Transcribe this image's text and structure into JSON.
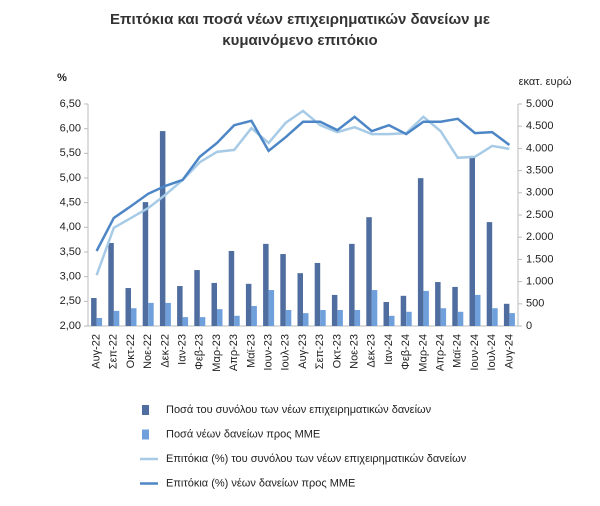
{
  "chart_data": {
    "type": "bar_line",
    "title": [
      "Επιτόκια και ποσά νέων επιχειρηματικών δανείων με",
      "κυμαινόμενο επιτόκιο"
    ],
    "y_label": "%",
    "y2_label": "εκατ. ευρώ",
    "categories": [
      "Αυγ-22",
      "Σεπ-22",
      "Οκτ-22",
      "Νοε-22",
      "Δεκ-22",
      "Ιαν-23",
      "Φεβ-23",
      "Μαρ-23",
      "Απρ-23",
      "Μαϊ-23",
      "Ιουν-23",
      "Ιουλ-23",
      "Αυγ-23",
      "Σεπ-23",
      "Οκτ-23",
      "Νοε-23",
      "Δεκ-23",
      "Ιαν-24",
      "Φεβ-24",
      "Μαρ-24",
      "Απρ-24",
      "Μαϊ-24",
      "Ιουν-24",
      "Ιουλ-24",
      "Αυγ-24"
    ],
    "series": [
      {
        "name": "Ποσά του συνόλου των νέων επιχειρηματικών δανείων",
        "type": "bar",
        "axis": "y2",
        "color": "#4f6d9e",
        "values": [
          630,
          1870,
          855,
          2790,
          4390,
          900,
          1260,
          970,
          1690,
          950,
          1850,
          1620,
          1190,
          1420,
          700,
          1850,
          2450,
          540,
          680,
          3330,
          990,
          880,
          3800,
          2340,
          500
        ]
      },
      {
        "name": "Ποσά νέων δανείων προς ΜΜΕ",
        "type": "bar",
        "axis": "y2",
        "color": "#6fa0dc",
        "values": [
          180,
          340,
          400,
          520,
          520,
          200,
          200,
          380,
          230,
          450,
          810,
          360,
          290,
          360,
          360,
          360,
          810,
          230,
          320,
          790,
          400,
          320,
          700,
          400,
          290
        ]
      },
      {
        "name": "Επιτόκια (%) του συνόλου των νέων επιχειρηματικών δανείων",
        "type": "line",
        "axis": "y",
        "color": "#a7cbe6",
        "values": [
          3.03,
          3.99,
          4.19,
          4.39,
          4.66,
          4.96,
          5.32,
          5.53,
          5.57,
          6.01,
          5.71,
          6.12,
          6.36,
          6.07,
          5.93,
          6.03,
          5.89,
          5.89,
          5.91,
          6.24,
          5.95,
          5.41,
          5.43,
          5.65,
          5.59
        ]
      },
      {
        "name": "Επιτόκια (%) νέων δανείων προς ΜΜΕ",
        "type": "line",
        "axis": "y",
        "color": "#4d86c6",
        "values": [
          3.52,
          4.19,
          4.43,
          4.68,
          4.84,
          4.96,
          5.43,
          5.71,
          6.07,
          6.16,
          5.55,
          5.83,
          6.14,
          6.14,
          5.97,
          6.24,
          5.95,
          6.07,
          5.89,
          6.14,
          6.14,
          6.2,
          5.91,
          5.93,
          5.67
        ]
      }
    ],
    "ylim": [
      2,
      6.5
    ],
    "yticks": [
      {
        "value": 2,
        "label": "2,00"
      },
      {
        "value": 2.5,
        "label": "2,50"
      },
      {
        "value": 3,
        "label": "3,00"
      },
      {
        "value": 3.5,
        "label": "3,50"
      },
      {
        "value": 4,
        "label": "4,00"
      },
      {
        "value": 4.5,
        "label": "4,50"
      },
      {
        "value": 5,
        "label": "5,00"
      },
      {
        "value": 5.5,
        "label": "5,50"
      },
      {
        "value": 6,
        "label": "6,00"
      },
      {
        "value": 6.5,
        "label": "6,50"
      }
    ],
    "y2lim": [
      0,
      5000
    ],
    "y2ticks": [
      0,
      500,
      {
        "value": 1000,
        "label": "1.000"
      },
      {
        "value": 1500,
        "label": "1.500"
      },
      {
        "value": 2000,
        "label": "2.000"
      },
      {
        "value": 2500,
        "label": "2.500"
      },
      {
        "value": 3000,
        "label": "3.000"
      },
      {
        "value": 3500,
        "label": "3.500"
      },
      {
        "value": 4000,
        "label": "4.000"
      },
      {
        "value": 4500,
        "label": "4.500"
      },
      {
        "value": 5000,
        "label": "5.000"
      }
    ]
  }
}
